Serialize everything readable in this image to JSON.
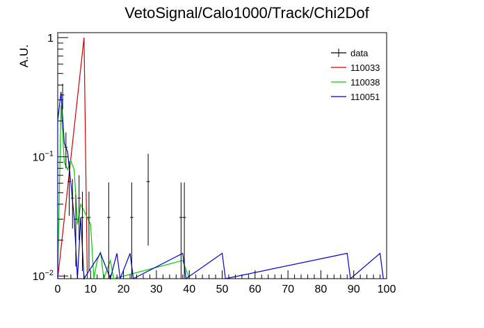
{
  "chart_data": {
    "type": "histogram",
    "title": "VetoSignal/Calo1000/Track/Chi2Dof",
    "xlabel": "",
    "ylabel": "A.U.",
    "xlim": [
      0,
      100
    ],
    "ylim": [
      0.0095,
      1.1
    ],
    "log_y": true,
    "grid": false,
    "legend_position": "top-right",
    "bin_width": 1,
    "x_ticks": [
      {
        "value": 0,
        "label": "0"
      },
      {
        "value": 10,
        "label": "10"
      },
      {
        "value": 20,
        "label": "20"
      },
      {
        "value": 30,
        "label": "30"
      },
      {
        "value": 40,
        "label": "40"
      },
      {
        "value": 50,
        "label": "50"
      },
      {
        "value": 60,
        "label": "60"
      },
      {
        "value": 70,
        "label": "70"
      },
      {
        "value": 80,
        "label": "80"
      },
      {
        "value": 90,
        "label": "90"
      },
      {
        "value": 100,
        "label": "100"
      }
    ],
    "y_ticks": [
      {
        "value": 0.01,
        "label_base": "10",
        "label_exp": "−2"
      },
      {
        "value": 0.1,
        "label_base": "10",
        "label_exp": "−1"
      },
      {
        "value": 1,
        "label_base": "1",
        "label_exp": ""
      }
    ],
    "series": [
      {
        "name": "data",
        "style": "points",
        "color": "#000000",
        "points": [
          {
            "x": 1.5,
            "y": 0.33,
            "err": 0.08
          },
          {
            "x": 2.5,
            "y": 0.12,
            "err": 0.04
          },
          {
            "x": 3.5,
            "y": 0.062,
            "err": 0.03
          },
          {
            "x": 4.5,
            "y": 0.045,
            "err": 0.02
          },
          {
            "x": 5.5,
            "y": 0.03,
            "err": 0.018
          },
          {
            "x": 6.5,
            "y": 0.045,
            "err": 0.025
          },
          {
            "x": 7.5,
            "y": 0.031,
            "err": 0.02
          },
          {
            "x": 9.5,
            "y": 0.031,
            "err": 0.02
          },
          {
            "x": 15.5,
            "y": 0.031,
            "err": 0.03
          },
          {
            "x": 22.5,
            "y": 0.031,
            "err": 0.03
          },
          {
            "x": 27.5,
            "y": 0.062,
            "err": 0.044
          },
          {
            "x": 37.5,
            "y": 0.031,
            "err": 0.03
          },
          {
            "x": 38.5,
            "y": 0.031,
            "err": 0.03
          }
        ]
      },
      {
        "name": "110033",
        "style": "step",
        "color": "#cc0000",
        "bins": [
          {
            "x": 8,
            "y": 1.0
          }
        ]
      },
      {
        "name": "110038",
        "style": "step",
        "color": "#00cc00",
        "bins": [
          {
            "x": 1,
            "y": 0.27
          },
          {
            "x": 2,
            "y": 0.09
          },
          {
            "x": 3,
            "y": 0.078
          },
          {
            "x": 4,
            "y": 0.092
          },
          {
            "x": 5,
            "y": 0.078
          },
          {
            "x": 6,
            "y": 0.027
          },
          {
            "x": 7,
            "y": 0.04
          },
          {
            "x": 8,
            "y": 0.04
          },
          {
            "x": 9,
            "y": 0.04
          },
          {
            "x": 10,
            "y": 0.027
          },
          {
            "x": 12,
            "y": 0.0135
          },
          {
            "x": 13,
            "y": 0.016
          },
          {
            "x": 16,
            "y": 0.0135
          },
          {
            "x": 38,
            "y": 0.0135
          },
          {
            "x": 39,
            "y": 0.0135
          }
        ]
      },
      {
        "name": "110051",
        "style": "step",
        "color": "#0000cc",
        "bins": [
          {
            "x": 0,
            "y": 0.2
          },
          {
            "x": 1,
            "y": 0.35
          },
          {
            "x": 2,
            "y": 0.13
          },
          {
            "x": 3,
            "y": 0.11
          },
          {
            "x": 4,
            "y": 0.06
          },
          {
            "x": 5,
            "y": 0.031
          },
          {
            "x": 7,
            "y": 0.031
          },
          {
            "x": 13,
            "y": 0.0155
          },
          {
            "x": 14,
            "y": 0.0155
          },
          {
            "x": 15,
            "y": 0.0155
          },
          {
            "x": 18,
            "y": 0.0155
          },
          {
            "x": 22,
            "y": 0.0155
          },
          {
            "x": 38,
            "y": 0.0155
          },
          {
            "x": 50,
            "y": 0.0155
          },
          {
            "x": 88,
            "y": 0.0155
          },
          {
            "x": 98,
            "y": 0.0155
          }
        ]
      }
    ]
  }
}
